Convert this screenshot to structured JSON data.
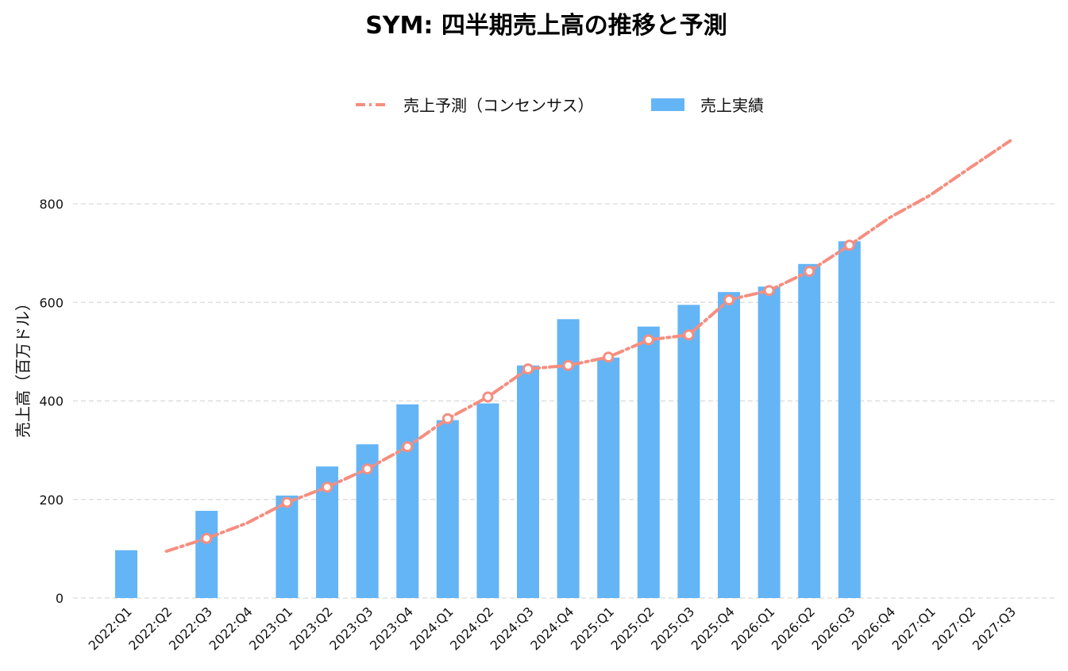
{
  "chart_data": {
    "type": "bar",
    "title": "SYM: 四半期売上高の推移と予測",
    "ylabel": "売上高（百万ドル）",
    "xlabel": "",
    "ylim": [
      0,
      900
    ],
    "yticks": [
      0,
      200,
      400,
      600,
      800
    ],
    "grid": true,
    "legend_position": "top-center",
    "categories": [
      "2022:Q1",
      "2022:Q2",
      "2022:Q3",
      "2022:Q4",
      "2023:Q1",
      "2023:Q2",
      "2023:Q3",
      "2023:Q4",
      "2024:Q1",
      "2024:Q2",
      "2024:Q3",
      "2024:Q4",
      "2025:Q1",
      "2025:Q2",
      "2025:Q3",
      "2025:Q4",
      "2026:Q1",
      "2026:Q2",
      "2026:Q3",
      "2026:Q4",
      "2027:Q1",
      "2027:Q2",
      "2027:Q3"
    ],
    "series": [
      {
        "name": "売上予測（コンセンサス）",
        "kind": "line",
        "style": "dash-dot",
        "color": "#F58E80",
        "values": [
          null,
          95,
          121,
          152,
          194,
          225,
          262,
          307,
          364,
          408,
          465,
          472,
          489,
          524,
          534,
          605,
          624,
          663,
          716,
          772,
          817,
          873,
          928
        ]
      },
      {
        "name": "売上実績",
        "kind": "bar",
        "color": "#64B5F6",
        "values": [
          97,
          null,
          177,
          null,
          208,
          267,
          312,
          393,
          361,
          395,
          472,
          566,
          488,
          551,
          595,
          621,
          632,
          678,
          724,
          null,
          null,
          null,
          null
        ]
      }
    ]
  }
}
